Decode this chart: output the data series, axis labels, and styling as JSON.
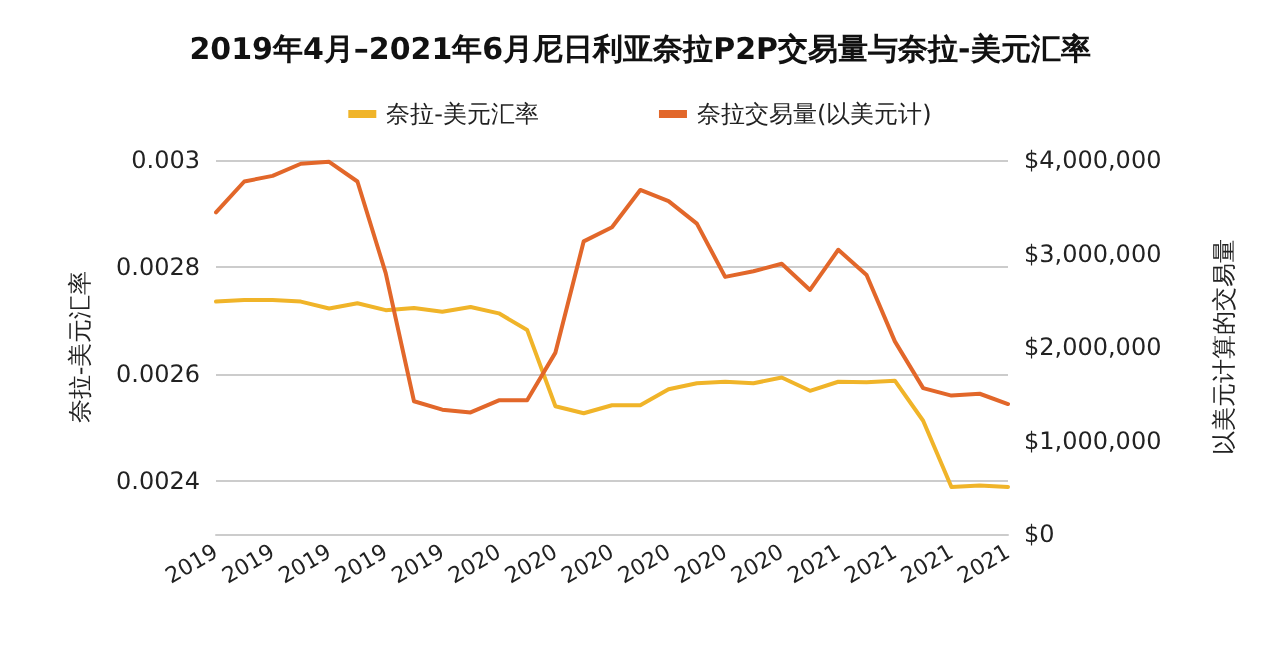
{
  "chart_data": {
    "type": "line",
    "title": "2019年4月–2021年6月尼日利亚奈拉P2P交易量与奈拉-美元汇率",
    "categories": [
      "2019",
      null,
      "2019",
      null,
      "2019",
      null,
      "2019",
      null,
      "2019",
      null,
      "2020",
      null,
      "2020",
      null,
      "2020",
      null,
      "2020",
      null,
      "2020",
      null,
      "2020",
      null,
      "2021",
      null,
      "2021",
      null,
      "2021",
      null,
      "2021"
    ],
    "series": [
      {
        "name": "奈拉-美元汇率",
        "color": "#f0b429",
        "values": [
          0.002735,
          0.002738,
          0.002738,
          0.002735,
          0.002722,
          0.002732,
          0.002719,
          0.002723,
          0.002716,
          0.002725,
          0.002713,
          0.002682,
          0.002539,
          0.002526,
          0.002541,
          0.002541,
          0.002571,
          0.002582,
          0.002585,
          0.002582,
          0.002593,
          0.002568,
          0.002585,
          0.002584,
          0.002587,
          0.002512,
          0.002388,
          0.002391,
          0.002388
        ]
      },
      {
        "name": "奈拉交易量(以美元计)",
        "color": "#e2672a",
        "axis": "y2",
        "values": [
          3440000,
          3770000,
          3830000,
          3960000,
          3980000,
          3770000,
          2790000,
          1420000,
          1330000,
          1300000,
          1430000,
          1430000,
          1940000,
          3130000,
          3280000,
          3680000,
          3560000,
          3320000,
          2750000,
          2810000,
          2890000,
          2610000,
          3040000,
          2770000,
          2060000,
          1560000,
          1480000,
          1500000,
          1390000
        ]
      }
    ],
    "ylabel": "奈拉-美元汇率",
    "y2label": "以美元计算的交易量",
    "ylim": [
      0.0023,
      0.003
    ],
    "yticks": [
      0.0024,
      0.0026,
      0.0028,
      0.003
    ],
    "y2lim": [
      0,
      4000000
    ],
    "y2ticks": [
      {
        "value": 0,
        "label": "$0"
      },
      {
        "value": 1000000,
        "label": "$1,000,000"
      },
      {
        "value": 2000000,
        "label": "$2,000,000"
      },
      {
        "value": 3000000,
        "label": "$3,000,000"
      },
      {
        "value": 4000000,
        "label": "$4,000,000"
      }
    ],
    "grid": "y",
    "legend": "top",
    "marker": "none",
    "line_style": "solid"
  }
}
